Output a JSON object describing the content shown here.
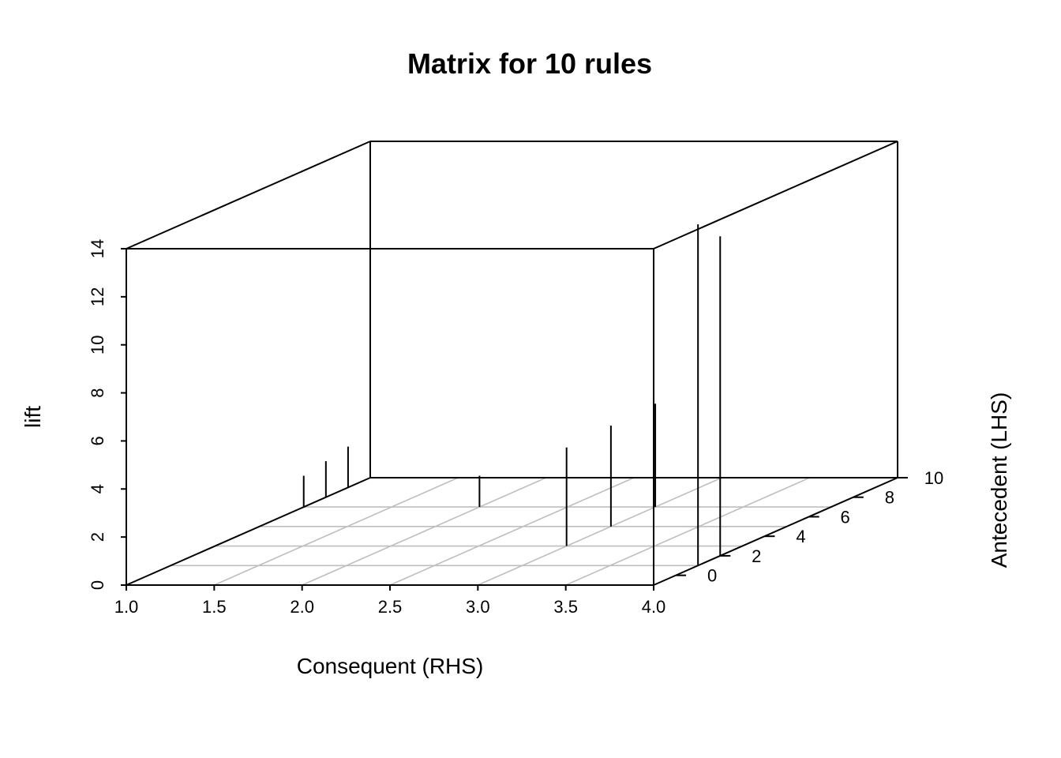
{
  "chart_data": {
    "type": "scatter3d",
    "title": "Matrix for 10 rules",
    "xlabel": "Consequent (RHS)",
    "ylabel": "Antecedent (LHS)",
    "zlabel": "lift",
    "xlim": [
      1.0,
      4.0
    ],
    "ylim": [
      -1,
      10
    ],
    "zlim": [
      0,
      14
    ],
    "x_ticks": [
      "1.0",
      "1.5",
      "2.0",
      "2.5",
      "3.0",
      "3.5",
      "4.0"
    ],
    "y_ticks": [
      "0",
      "2",
      "4",
      "6",
      "8",
      "10"
    ],
    "z_ticks": [
      "0",
      "2",
      "4",
      "6",
      "8",
      "10",
      "12",
      "14"
    ],
    "grid_x": [
      1.5,
      2.0,
      2.5,
      3.0,
      3.5
    ],
    "grid_y": [
      1,
      3,
      5,
      7
    ],
    "points": [
      {
        "x": 1,
        "y": 7,
        "lift": 1.3
      },
      {
        "x": 1,
        "y": 8,
        "lift": 1.5
      },
      {
        "x": 1,
        "y": 9,
        "lift": 1.7
      },
      {
        "x": 1,
        "y": 10,
        "lift": 1.8
      },
      {
        "x": 2,
        "y": 7,
        "lift": 1.3
      },
      {
        "x": 3,
        "y": 3,
        "lift": 4.1
      },
      {
        "x": 3,
        "y": 5,
        "lift": 4.2
      },
      {
        "x": 3,
        "y": 7,
        "lift": 4.3
      },
      {
        "x": 4,
        "y": 1,
        "lift": 14.2
      },
      {
        "x": 4,
        "y": 2,
        "lift": 13.3
      }
    ],
    "colors": {
      "frame": "#000000",
      "grid": "#bebebe",
      "spike": "#000000",
      "background": "#ffffff"
    }
  }
}
